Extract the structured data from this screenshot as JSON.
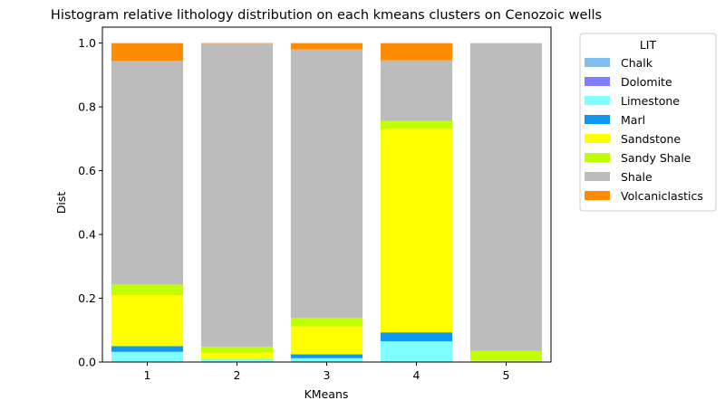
{
  "chart_data": {
    "type": "bar",
    "stacked": true,
    "title": "Histogram relative lithology distribution on each kmeans clusters on Cenozoic wells",
    "xlabel": "KMeans",
    "ylabel": "Dist",
    "ylim": [
      0,
      1.05
    ],
    "yticks": [
      "0.0",
      "0.2",
      "0.4",
      "0.6",
      "0.8",
      "1.0"
    ],
    "categories": [
      "1",
      "2",
      "3",
      "4",
      "5"
    ],
    "legend": {
      "title": "LIT",
      "placement": "outside-top-right"
    },
    "series": [
      {
        "name": "Chalk",
        "color": "#7fbfef",
        "values": [
          0.002,
          0.0,
          0.0,
          0.0,
          0.0
        ]
      },
      {
        "name": "Dolomite",
        "color": "#7f7fff",
        "values": [
          0.0,
          0.0,
          0.0,
          0.002,
          0.0
        ]
      },
      {
        "name": "Limestone",
        "color": "#7fffff",
        "values": [
          0.03,
          0.01,
          0.012,
          0.063,
          0.004
        ]
      },
      {
        "name": "Marl",
        "color": "#0d96f2",
        "values": [
          0.018,
          0.0,
          0.012,
          0.028,
          0.0
        ]
      },
      {
        "name": "Sandstone",
        "color": "#ffff00",
        "values": [
          0.16,
          0.02,
          0.088,
          0.638,
          0.002
        ]
      },
      {
        "name": "Sandy Shale",
        "color": "#bfff00",
        "values": [
          0.033,
          0.018,
          0.027,
          0.025,
          0.029
        ]
      },
      {
        "name": "Shale",
        "color": "#bcbcbc",
        "values": [
          0.701,
          0.95,
          0.841,
          0.19,
          0.965
        ]
      },
      {
        "name": "Volcaniclastics",
        "color": "#ff8c00",
        "values": [
          0.056,
          0.002,
          0.02,
          0.054,
          0.0
        ]
      }
    ]
  }
}
